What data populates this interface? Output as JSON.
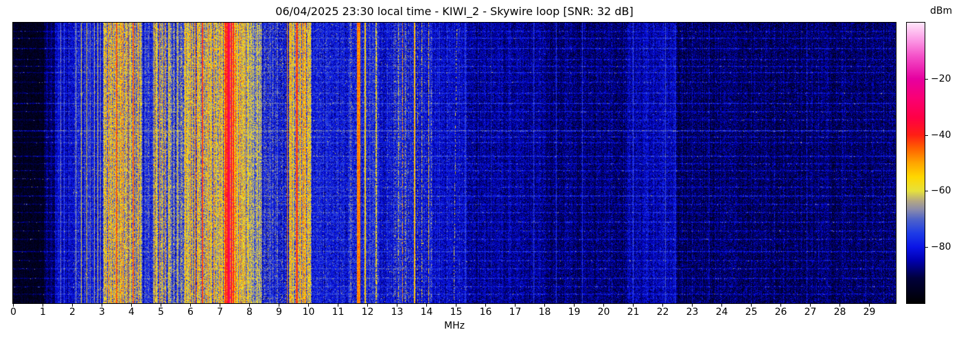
{
  "chart_data": {
    "type": "heatmap",
    "title": "06/04/2025 23:30 local time - KIWI_2 - Skywire loop [SNR: 32 dB]",
    "xlabel": "MHz",
    "x_range": [
      0,
      30
    ],
    "x_ticks": [
      0,
      1,
      2,
      3,
      4,
      5,
      6,
      7,
      8,
      9,
      10,
      11,
      12,
      13,
      14,
      15,
      16,
      17,
      18,
      19,
      20,
      21,
      22,
      23,
      24,
      25,
      26,
      27,
      28,
      29
    ],
    "y_axis": "time (waterfall rows, unlabeled)",
    "grid": false,
    "colorbar": {
      "label": "dBm",
      "range": [
        -100,
        0
      ],
      "tick_values": [
        -20,
        -40,
        -60,
        -80
      ],
      "ticks": [
        "−20",
        "−40",
        "−60",
        "−80"
      ]
    },
    "colormap_stops": [
      [
        0.0,
        "#000000"
      ],
      [
        0.09,
        "#00003c"
      ],
      [
        0.155,
        "#0000b4"
      ],
      [
        0.2,
        "#0a14e6"
      ],
      [
        0.25,
        "#1e3ce6"
      ],
      [
        0.3,
        "#5064c8"
      ],
      [
        0.335,
        "#8c8caa"
      ],
      [
        0.365,
        "#b4a882"
      ],
      [
        0.4,
        "#e6e13c"
      ],
      [
        0.45,
        "#ffd700"
      ],
      [
        0.5,
        "#ffa500"
      ],
      [
        0.55,
        "#ff6400"
      ],
      [
        0.6,
        "#ff1e14"
      ],
      [
        0.66,
        "#ff0044"
      ],
      [
        0.73,
        "#fa0073"
      ],
      [
        0.8,
        "#e600a0"
      ],
      [
        0.88,
        "#f450c8"
      ],
      [
        0.94,
        "#fc9ce6"
      ],
      [
        1.0,
        "#ffe6fa"
      ]
    ],
    "seed": 11,
    "regions": [
      {
        "f0": 0.0,
        "f1": 1.05,
        "base": -95,
        "sigma": 2.5,
        "cj": 1
      },
      {
        "f0": 1.05,
        "f1": 1.42,
        "base": -90,
        "sigma": 3,
        "cj": 1.5
      },
      {
        "f0": 1.42,
        "f1": 2.05,
        "base": -82,
        "sigma": 3.5,
        "cj": 2
      },
      {
        "f0": 2.05,
        "f1": 3.05,
        "base": -79,
        "sigma": 4,
        "cj": 2.5
      },
      {
        "f0": 3.05,
        "f1": 4.38,
        "base": -64,
        "sigma": 7,
        "cj": 5
      },
      {
        "f0": 4.38,
        "f1": 4.75,
        "base": -77,
        "sigma": 5,
        "cj": 3
      },
      {
        "f0": 4.75,
        "f1": 5.35,
        "base": -66,
        "sigma": 7,
        "cj": 5
      },
      {
        "f0": 5.35,
        "f1": 5.8,
        "base": -73,
        "sigma": 6,
        "cj": 4
      },
      {
        "f0": 5.8,
        "f1": 7.15,
        "base": -63,
        "sigma": 7,
        "cj": 5
      },
      {
        "f0": 7.15,
        "f1": 7.55,
        "base": -50,
        "sigma": 7,
        "cj": 4
      },
      {
        "f0": 7.55,
        "f1": 8.05,
        "base": -63,
        "sigma": 6,
        "cj": 5
      },
      {
        "f0": 8.05,
        "f1": 8.45,
        "base": -69,
        "sigma": 6,
        "cj": 4
      },
      {
        "f0": 8.45,
        "f1": 9.35,
        "base": -78,
        "sigma": 5,
        "cj": 3
      },
      {
        "f0": 9.35,
        "f1": 10.12,
        "base": -63,
        "sigma": 7,
        "cj": 5
      },
      {
        "f0": 10.12,
        "f1": 11.4,
        "base": -80,
        "sigma": 4.5,
        "cj": 2
      },
      {
        "f0": 11.4,
        "f1": 12.4,
        "base": -78,
        "sigma": 5,
        "cj": 2.5
      },
      {
        "f0": 12.4,
        "f1": 12.85,
        "base": -81,
        "sigma": 4,
        "cj": 2
      },
      {
        "f0": 12.85,
        "f1": 13.45,
        "base": -78,
        "sigma": 5,
        "cj": 2.5
      },
      {
        "f0": 13.45,
        "f1": 14.2,
        "base": -80,
        "sigma": 4.5,
        "cj": 2
      },
      {
        "f0": 14.2,
        "f1": 15.4,
        "base": -82,
        "sigma": 4,
        "cj": 1.5
      },
      {
        "f0": 15.4,
        "f1": 18.0,
        "base": -86,
        "sigma": 4,
        "cj": 1.5
      },
      {
        "f0": 18.0,
        "f1": 20.8,
        "base": -88,
        "sigma": 4,
        "cj": 1.5
      },
      {
        "f0": 20.8,
        "f1": 22.5,
        "base": -84,
        "sigma": 4,
        "cj": 1.5
      },
      {
        "f0": 22.5,
        "f1": 30.0,
        "base": -89,
        "sigma": 4,
        "cj": 1.5
      }
    ],
    "carriers": [
      {
        "f": 1.15,
        "lv": -86
      },
      {
        "f": 1.3,
        "lv": -84
      },
      {
        "f": 1.55,
        "lv": -76,
        "d": 0.5
      },
      {
        "f": 1.62,
        "lv": -68
      },
      {
        "f": 1.74,
        "lv": -74,
        "d": 0.6
      },
      {
        "f": 1.9,
        "lv": -72,
        "d": 0.5
      },
      {
        "f": 2.13,
        "lv": -66
      },
      {
        "f": 2.22,
        "lv": -72,
        "d": 0.6
      },
      {
        "f": 2.31,
        "lv": -58
      },
      {
        "f": 2.42,
        "lv": -70,
        "d": 0.5
      },
      {
        "f": 2.5,
        "lv": -56
      },
      {
        "f": 2.62,
        "lv": -68
      },
      {
        "f": 2.75,
        "lv": -63
      },
      {
        "f": 2.88,
        "lv": -60
      },
      {
        "f": 2.97,
        "lv": -66
      },
      {
        "f": 3.08,
        "lv": -58
      },
      {
        "f": 3.16,
        "lv": -52
      },
      {
        "f": 3.25,
        "lv": -47
      },
      {
        "f": 3.33,
        "lv": -55
      },
      {
        "f": 3.41,
        "lv": -50
      },
      {
        "f": 3.5,
        "lv": -44,
        "w": 0.05
      },
      {
        "f": 3.58,
        "lv": -56
      },
      {
        "f": 3.66,
        "lv": -50
      },
      {
        "f": 3.74,
        "lv": -46
      },
      {
        "f": 3.82,
        "lv": -54
      },
      {
        "f": 3.9,
        "lv": -48
      },
      {
        "f": 3.99,
        "lv": -58
      },
      {
        "f": 4.07,
        "lv": -45,
        "w": 0.05
      },
      {
        "f": 4.15,
        "lv": -52
      },
      {
        "f": 4.24,
        "lv": -49
      },
      {
        "f": 4.32,
        "lv": -55
      },
      {
        "f": 4.47,
        "lv": -70,
        "d": 0.4
      },
      {
        "f": 4.6,
        "lv": -66,
        "d": 0.5
      },
      {
        "f": 4.8,
        "lv": -52
      },
      {
        "f": 4.88,
        "lv": -58
      },
      {
        "f": 4.97,
        "lv": -48
      },
      {
        "f": 5.06,
        "lv": -55
      },
      {
        "f": 5.15,
        "lv": -50
      },
      {
        "f": 5.26,
        "lv": -57
      },
      {
        "f": 5.45,
        "lv": -62,
        "d": 0.7
      },
      {
        "f": 5.57,
        "lv": -58
      },
      {
        "f": 5.7,
        "lv": -63,
        "d": 0.6
      },
      {
        "f": 5.85,
        "lv": -52
      },
      {
        "f": 5.93,
        "lv": -57
      },
      {
        "f": 6.01,
        "lv": -49
      },
      {
        "f": 6.09,
        "lv": -54
      },
      {
        "f": 6.17,
        "lv": -46
      },
      {
        "f": 6.25,
        "lv": -52
      },
      {
        "f": 6.33,
        "lv": -57
      },
      {
        "f": 6.42,
        "lv": -42,
        "w": 0.05
      },
      {
        "f": 6.52,
        "lv": -55
      },
      {
        "f": 6.61,
        "lv": -50
      },
      {
        "f": 6.7,
        "lv": -53
      },
      {
        "f": 6.8,
        "lv": -47
      },
      {
        "f": 6.9,
        "lv": -54
      },
      {
        "f": 7.0,
        "lv": -50
      },
      {
        "f": 7.08,
        "lv": -56
      },
      {
        "f": 7.2,
        "lv": -40,
        "w": 0.05
      },
      {
        "f": 7.27,
        "lv": -36,
        "w": 0.04
      },
      {
        "f": 7.33,
        "lv": -30,
        "w": 0.05
      },
      {
        "f": 7.4,
        "lv": -36,
        "w": 0.04
      },
      {
        "f": 7.47,
        "lv": -42,
        "w": 0.04
      },
      {
        "f": 7.6,
        "lv": -54
      },
      {
        "f": 7.69,
        "lv": -49
      },
      {
        "f": 7.78,
        "lv": -56
      },
      {
        "f": 7.87,
        "lv": -51
      },
      {
        "f": 7.96,
        "lv": -55
      },
      {
        "f": 8.06,
        "lv": -58
      },
      {
        "f": 8.16,
        "lv": -62,
        "d": 0.7
      },
      {
        "f": 8.27,
        "lv": -57
      },
      {
        "f": 8.37,
        "lv": -61
      },
      {
        "f": 8.52,
        "lv": -68,
        "d": 0.45
      },
      {
        "f": 8.65,
        "lv": -64,
        "d": 0.5
      },
      {
        "f": 8.8,
        "lv": -66,
        "d": 0.45
      },
      {
        "f": 8.95,
        "lv": -65,
        "d": 0.5
      },
      {
        "f": 9.1,
        "lv": -68,
        "d": 0.4
      },
      {
        "f": 9.22,
        "lv": -70,
        "d": 0.35
      },
      {
        "f": 9.3,
        "lv": -48,
        "w": 0.03
      },
      {
        "f": 9.42,
        "lv": -52
      },
      {
        "f": 9.5,
        "lv": -55
      },
      {
        "f": 9.62,
        "lv": -42,
        "w": 0.08
      },
      {
        "f": 9.74,
        "lv": -50
      },
      {
        "f": 9.82,
        "lv": -47
      },
      {
        "f": 9.9,
        "lv": -52
      },
      {
        "f": 9.99,
        "lv": -55
      },
      {
        "f": 10.08,
        "lv": -59,
        "d": 0.7
      },
      {
        "f": 10.3,
        "lv": -72,
        "d": 0.3
      },
      {
        "f": 10.52,
        "lv": -70,
        "d": 0.3
      },
      {
        "f": 10.75,
        "lv": -73,
        "d": 0.25
      },
      {
        "f": 11.0,
        "lv": -71,
        "d": 0.3
      },
      {
        "f": 11.2,
        "lv": -74,
        "d": 0.25
      },
      {
        "f": 11.45,
        "lv": -64,
        "d": 0.5
      },
      {
        "f": 11.72,
        "lv": -47,
        "w": 0.12
      },
      {
        "f": 11.93,
        "lv": -55,
        "w": 0.05
      },
      {
        "f": 12.05,
        "lv": -68,
        "d": 0.4
      },
      {
        "f": 12.3,
        "lv": -57,
        "w": 0.05,
        "d": 0.8
      },
      {
        "f": 12.5,
        "lv": -74,
        "d": 0.3
      },
      {
        "f": 12.68,
        "lv": -71,
        "d": 0.35
      },
      {
        "f": 12.95,
        "lv": -64,
        "d": 0.5
      },
      {
        "f": 13.05,
        "lv": -58,
        "d": 0.6
      },
      {
        "f": 13.2,
        "lv": -49,
        "w": 0.03,
        "d": 0.75
      },
      {
        "f": 13.3,
        "lv": -60,
        "d": 0.55
      },
      {
        "f": 13.4,
        "lv": -66,
        "d": 0.4
      },
      {
        "f": 13.6,
        "lv": -52,
        "w": 0.05
      },
      {
        "f": 13.72,
        "lv": -62,
        "d": 0.4
      },
      {
        "f": 13.86,
        "lv": -58,
        "d": 0.6
      },
      {
        "f": 14.08,
        "lv": -54,
        "d": 0.8
      },
      {
        "f": 14.18,
        "lv": -64,
        "d": 0.4
      },
      {
        "f": 14.45,
        "lv": -74,
        "d": 0.3
      },
      {
        "f": 14.7,
        "lv": -72,
        "d": 0.3
      },
      {
        "f": 14.97,
        "lv": -58,
        "d": 0.4,
        "drift": 0.1
      },
      {
        "f": 15.12,
        "lv": -70,
        "d": 0.3
      },
      {
        "f": 15.33,
        "lv": -74
      },
      {
        "f": 15.75,
        "lv": -80,
        "d": 0.5
      },
      {
        "f": 16.2,
        "lv": -78
      },
      {
        "f": 16.55,
        "lv": -81,
        "d": 0.4
      },
      {
        "f": 16.85,
        "lv": -79,
        "d": 0.5
      },
      {
        "f": 17.2,
        "lv": -80,
        "d": 0.4
      },
      {
        "f": 17.65,
        "lv": -75
      },
      {
        "f": 18.0,
        "lv": -80,
        "d": 0.4
      },
      {
        "f": 18.4,
        "lv": -76
      },
      {
        "f": 18.8,
        "lv": -80,
        "d": 0.4
      },
      {
        "f": 19.3,
        "lv": -76
      },
      {
        "f": 19.75,
        "lv": -80,
        "d": 0.4
      },
      {
        "f": 20.3,
        "lv": -79,
        "d": 0.4
      },
      {
        "f": 21.0,
        "lv": -74
      },
      {
        "f": 21.45,
        "lv": -78,
        "d": 0.5
      },
      {
        "f": 22.1,
        "lv": -73
      },
      {
        "f": 22.42,
        "lv": -77
      },
      {
        "f": 23.0,
        "lv": -80,
        "d": 0.4
      },
      {
        "f": 23.6,
        "lv": -81,
        "d": 0.4
      },
      {
        "f": 24.3,
        "lv": -80,
        "d": 0.4
      },
      {
        "f": 25.0,
        "lv": -81,
        "d": 0.4
      },
      {
        "f": 25.8,
        "lv": -80,
        "d": 0.4
      },
      {
        "f": 26.5,
        "lv": -81,
        "d": 0.4
      },
      {
        "f": 26.9,
        "lv": -79,
        "d": 0.6
      },
      {
        "f": 27.3,
        "lv": -80,
        "d": 0.4
      },
      {
        "f": 28.1,
        "lv": -81,
        "d": 0.4
      },
      {
        "f": 28.9,
        "lv": -80,
        "d": 0.4
      },
      {
        "f": 29.5,
        "lv": -80,
        "d": 0.4
      }
    ],
    "speckle_zones": [
      {
        "f0": 2.05,
        "f1": 3.05,
        "p": 0.02,
        "lv": -62
      },
      {
        "f0": 5.35,
        "f1": 5.8,
        "p": 0.02,
        "lv": -60
      },
      {
        "f0": 8.45,
        "f1": 9.35,
        "p": 0.03,
        "lv": -63
      },
      {
        "f0": 10.12,
        "f1": 11.4,
        "p": 0.01,
        "lv": -64
      },
      {
        "f0": 11.4,
        "f1": 12.85,
        "p": 0.015,
        "lv": -63
      },
      {
        "f0": 12.85,
        "f1": 14.2,
        "p": 0.02,
        "lv": -62
      },
      {
        "f0": 14.2,
        "f1": 15.4,
        "p": 0.006,
        "lv": -66
      }
    ],
    "streak_rows": [
      {
        "y": 0.03,
        "b": 5
      },
      {
        "y": 0.055,
        "b": 7
      },
      {
        "y": 0.09,
        "b": 8
      },
      {
        "y": 0.13,
        "b": 5
      },
      {
        "y": 0.155,
        "b": 6
      },
      {
        "y": 0.175,
        "b": 7
      },
      {
        "y": 0.21,
        "b": 5
      },
      {
        "y": 0.25,
        "b": 6
      },
      {
        "y": 0.285,
        "b": 9
      },
      {
        "y": 0.315,
        "b": 6
      },
      {
        "y": 0.345,
        "b": 5
      },
      {
        "y": 0.385,
        "b": 13
      },
      {
        "y": 0.405,
        "b": 6
      },
      {
        "y": 0.425,
        "b": 6
      },
      {
        "y": 0.475,
        "b": 9
      },
      {
        "y": 0.5,
        "b": 5
      },
      {
        "y": 0.525,
        "b": 6
      },
      {
        "y": 0.555,
        "b": 5
      },
      {
        "y": 0.585,
        "b": 6
      },
      {
        "y": 0.615,
        "b": 9
      },
      {
        "y": 0.645,
        "b": 5
      },
      {
        "y": 0.675,
        "b": 6
      },
      {
        "y": 0.71,
        "b": 7
      },
      {
        "y": 0.74,
        "b": 5
      },
      {
        "y": 0.77,
        "b": 6
      },
      {
        "y": 0.815,
        "b": 8
      },
      {
        "y": 0.845,
        "b": 5
      },
      {
        "y": 0.875,
        "b": 6
      },
      {
        "y": 0.91,
        "b": 7
      },
      {
        "y": 0.94,
        "b": 5
      },
      {
        "y": 0.965,
        "b": 6
      }
    ]
  }
}
